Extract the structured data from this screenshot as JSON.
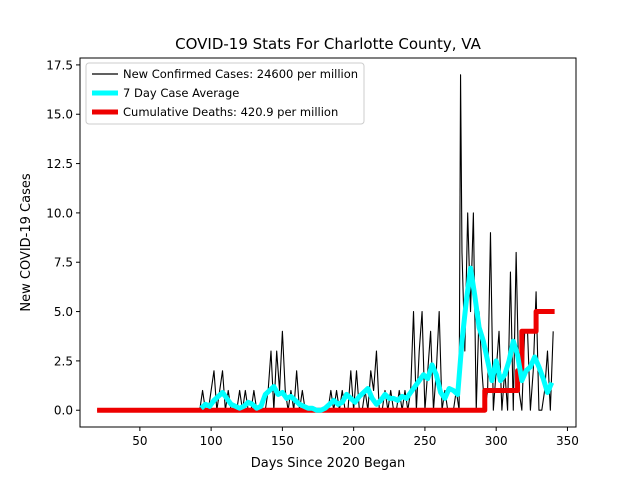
{
  "chart_data": {
    "type": "line",
    "title": "COVID-19 Stats For Charlotte County, VA",
    "xlabel": "Days Since 2020 Began",
    "ylabel": "New COVID-19 Cases",
    "xlim": [
      8,
      356
    ],
    "ylim": [
      -0.85,
      17.85
    ],
    "xticks": [
      50,
      100,
      150,
      200,
      250,
      300,
      350
    ],
    "xtick_labels": [
      "50",
      "100",
      "150",
      "200",
      "250",
      "300",
      "350"
    ],
    "yticks": [
      0,
      2.5,
      5,
      7.5,
      10,
      12.5,
      15,
      17.5
    ],
    "ytick_labels": [
      "0.0",
      "2.5",
      "5.0",
      "7.5",
      "10.0",
      "12.5",
      "15.0",
      "17.5"
    ],
    "grid": false,
    "legend_position": "top-left",
    "series": [
      {
        "name": "New Confirmed Cases: 24600 per million",
        "color": "#000000",
        "style": "thin",
        "x": [
          20,
          90,
          92,
          94,
          96,
          98,
          100,
          102,
          104,
          106,
          108,
          110,
          112,
          114,
          116,
          118,
          120,
          122,
          124,
          126,
          128,
          130,
          132,
          134,
          136,
          138,
          140,
          142,
          144,
          146,
          148,
          150,
          152,
          154,
          156,
          158,
          160,
          162,
          164,
          166,
          168,
          170,
          172,
          174,
          176,
          178,
          180,
          182,
          184,
          186,
          188,
          190,
          192,
          194,
          196,
          198,
          200,
          202,
          204,
          206,
          208,
          210,
          212,
          214,
          216,
          218,
          220,
          222,
          224,
          226,
          228,
          230,
          232,
          234,
          236,
          238,
          240,
          242,
          244,
          246,
          248,
          250,
          252,
          254,
          256,
          258,
          260,
          262,
          264,
          266,
          268,
          270,
          272,
          274,
          275,
          276,
          278,
          280,
          282,
          284,
          286,
          288,
          290,
          292,
          294,
          296,
          298,
          300,
          302,
          304,
          306,
          308,
          310,
          312,
          314,
          316,
          318,
          320,
          322,
          324,
          326,
          328,
          330,
          332,
          334,
          336,
          338,
          340
        ],
        "values": [
          0,
          0,
          0,
          1,
          0,
          0,
          1,
          2,
          0,
          1,
          2,
          0,
          1,
          0,
          0,
          0,
          1,
          0,
          1,
          0,
          0,
          1,
          0,
          0,
          0,
          0,
          1,
          3,
          0,
          3,
          1,
          4,
          1,
          0,
          1,
          0,
          2,
          0,
          1,
          0,
          0,
          0,
          0,
          0,
          0,
          0,
          0,
          0,
          1,
          0,
          1,
          0,
          1,
          0,
          0,
          2,
          0,
          2,
          0,
          0,
          1,
          0,
          2,
          1,
          3,
          0,
          0,
          1,
          0,
          1,
          0,
          0,
          1,
          0,
          1,
          0,
          1,
          5,
          0,
          3,
          5,
          0,
          2,
          4,
          0,
          2,
          5,
          0,
          1,
          0,
          0,
          0,
          1,
          0,
          17,
          8,
          3,
          10,
          5,
          10,
          0,
          5,
          2,
          0,
          1,
          9,
          0,
          2,
          4,
          0,
          2,
          0,
          7,
          0,
          8,
          1,
          0,
          4,
          4,
          0,
          2,
          6,
          0,
          0,
          1,
          3,
          0,
          4
        ]
      },
      {
        "name": "7 Day Case Average",
        "color": "#00ffff",
        "style": "thick",
        "x": [
          93,
          96,
          99,
          102,
          105,
          108,
          111,
          114,
          117,
          120,
          123,
          126,
          129,
          132,
          135,
          138,
          141,
          144,
          147,
          150,
          153,
          156,
          159,
          162,
          165,
          168,
          171,
          174,
          177,
          180,
          183,
          186,
          189,
          192,
          195,
          198,
          201,
          204,
          207,
          210,
          213,
          216,
          219,
          222,
          225,
          228,
          231,
          234,
          237,
          240,
          243,
          246,
          249,
          252,
          255,
          258,
          261,
          264,
          267,
          270,
          273,
          276,
          279,
          282,
          285,
          288,
          291,
          294,
          297,
          300,
          303,
          306,
          309,
          312,
          315,
          318,
          321,
          324,
          327,
          330,
          333,
          336,
          339
        ],
        "values": [
          0.1,
          0.3,
          0.2,
          0.5,
          0.7,
          0.9,
          0.6,
          0.3,
          0.2,
          0.1,
          0.2,
          0.4,
          0.3,
          0.1,
          0.2,
          0.8,
          1.0,
          1.2,
          0.8,
          0.9,
          0.6,
          0.7,
          0.5,
          0.3,
          0.2,
          0.1,
          0.1,
          0.0,
          0.0,
          0.1,
          0.3,
          0.5,
          0.3,
          0.4,
          0.8,
          0.6,
          0.4,
          0.7,
          0.9,
          1.1,
          0.6,
          0.3,
          0.5,
          0.8,
          0.6,
          0.6,
          0.5,
          0.7,
          0.6,
          0.9,
          1.2,
          1.5,
          1.8,
          1.6,
          2.3,
          1.8,
          0.9,
          0.6,
          1.1,
          1.0,
          0.8,
          3.5,
          5.5,
          7.2,
          5.8,
          4.2,
          3.5,
          2.5,
          1.5,
          2.5,
          1.5,
          1.8,
          2.5,
          3.5,
          2.8,
          1.5,
          2.0,
          2.2,
          2.7,
          2.2,
          1.6,
          0.9,
          1.4
        ]
      },
      {
        "name": "Cumulative Deaths: 420.9 per million",
        "color": "#ee0000",
        "style": "step",
        "x": [
          20,
          292,
          292,
          315,
          315,
          318,
          318,
          325,
          325,
          328,
          328,
          341
        ],
        "values": [
          0,
          0,
          1,
          1,
          2,
          2,
          4,
          4,
          4,
          4,
          5,
          5
        ]
      }
    ]
  }
}
